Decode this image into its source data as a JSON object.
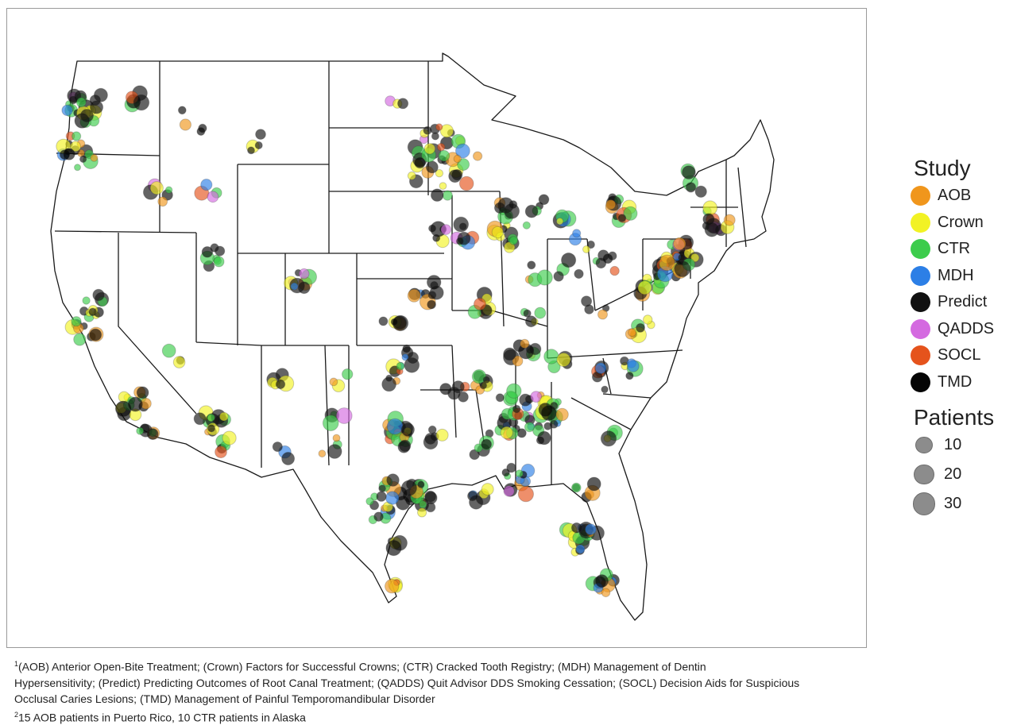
{
  "legend": {
    "study_title": "Study",
    "studies": [
      {
        "name": "AOB",
        "color": "#f0961c"
      },
      {
        "name": "Crown",
        "color": "#f2f224"
      },
      {
        "name": "CTR",
        "color": "#3ccc4c"
      },
      {
        "name": "MDH",
        "color": "#2c7fe6"
      },
      {
        "name": "Predict",
        "color": "#111111"
      },
      {
        "name": "QADDS",
        "color": "#d46ae0"
      },
      {
        "name": "SOCL",
        "color": "#e5531c"
      },
      {
        "name": "TMD",
        "color": "#050505"
      }
    ],
    "patients_title": "Patients",
    "sizes": [
      {
        "label": "10",
        "value": 10
      },
      {
        "label": "20",
        "value": 20
      },
      {
        "label": "30",
        "value": 30
      }
    ]
  },
  "footnotes": {
    "note1_marker": "1",
    "note1_line1": "(AOB) Anterior Open-Bite Treatment; (Crown) Factors for Successful Crowns; (CTR) Cracked Tooth Registry; (MDH) Management of Dentin",
    "note1_line2": "Hypersensitivity; (Predict) Predicting Outcomes of Root Canal Treatment; (QADDS) Quit Advisor DDS Smoking Cessation; (SOCL) Decision Aids for Suspicious",
    "note1_line3": "Occlusal Caries Lesions; (TMD) Management of Painful Temporomandibular Disorder",
    "note2_marker": "2",
    "note2_text": "15 AOB patients in Puerto Rico, 10 CTR patients in Alaska"
  },
  "map": {
    "border_color": "#1a1a1a",
    "clusters": [
      {
        "place": "Seattle",
        "lon": -122.3,
        "lat": 47.6,
        "count": 22,
        "spread": 0.9
      },
      {
        "place": "Portland",
        "lon": -122.7,
        "lat": 45.5,
        "count": 18,
        "spread": 0.8
      },
      {
        "place": "Spokane",
        "lon": -117.4,
        "lat": 47.7,
        "count": 6,
        "spread": 0.6
      },
      {
        "place": "Boise",
        "lon": -116.2,
        "lat": 43.6,
        "count": 6,
        "spread": 0.6
      },
      {
        "place": "Bay Area",
        "lon": -122.2,
        "lat": 37.7,
        "count": 14,
        "spread": 0.8
      },
      {
        "place": "Sacramento",
        "lon": -121.5,
        "lat": 38.6,
        "count": 6,
        "spread": 0.5
      },
      {
        "place": "Los Angeles",
        "lon": -118.2,
        "lat": 34.1,
        "count": 14,
        "spread": 0.7
      },
      {
        "place": "San Diego",
        "lon": -117.1,
        "lat": 32.8,
        "count": 6,
        "spread": 0.4
      },
      {
        "place": "Salt Lake City",
        "lon": -111.9,
        "lat": 40.7,
        "count": 8,
        "spread": 0.5
      },
      {
        "place": "Denver",
        "lon": -104.9,
        "lat": 39.7,
        "count": 10,
        "spread": 0.5
      },
      {
        "place": "Phoenix",
        "lon": -112.0,
        "lat": 33.4,
        "count": 14,
        "spread": 0.6
      },
      {
        "place": "Tucson",
        "lon": -110.9,
        "lat": 32.2,
        "count": 5,
        "spread": 0.4
      },
      {
        "place": "Albuquerque",
        "lon": -106.6,
        "lat": 35.1,
        "count": 6,
        "spread": 0.4
      },
      {
        "place": "Billings",
        "lon": -108.5,
        "lat": 45.8,
        "count": 4,
        "spread": 0.5
      },
      {
        "place": "Minneapolis",
        "lon": -93.3,
        "lat": 45.0,
        "count": 40,
        "spread": 1.6
      },
      {
        "place": "Chicago",
        "lon": -87.7,
        "lat": 41.9,
        "count": 16,
        "spread": 0.8
      },
      {
        "place": "Des Moines",
        "lon": -93.6,
        "lat": 41.6,
        "count": 6,
        "spread": 0.5
      },
      {
        "place": "Kansas City",
        "lon": -94.6,
        "lat": 39.1,
        "count": 10,
        "spread": 0.6
      },
      {
        "place": "Wichita",
        "lon": -97.3,
        "lat": 37.7,
        "count": 6,
        "spread": 0.5
      },
      {
        "place": "St. Louis",
        "lon": -90.2,
        "lat": 38.6,
        "count": 8,
        "spread": 0.5
      },
      {
        "place": "Oklahoma City",
        "lon": -97.5,
        "lat": 35.5,
        "count": 8,
        "spread": 0.6
      },
      {
        "place": "Dallas",
        "lon": -96.8,
        "lat": 32.8,
        "count": 18,
        "spread": 0.7
      },
      {
        "place": "Houston",
        "lon": -95.4,
        "lat": 29.8,
        "count": 20,
        "spread": 0.8
      },
      {
        "place": "San Antonio",
        "lon": -98.5,
        "lat": 29.4,
        "count": 10,
        "spread": 0.6
      },
      {
        "place": "Corpus Christi",
        "lon": -97.4,
        "lat": 27.8,
        "count": 5,
        "spread": 0.4
      },
      {
        "place": "Brownsville",
        "lon": -97.5,
        "lat": 26.0,
        "count": 4,
        "spread": 0.3
      },
      {
        "place": "Austin",
        "lon": -97.7,
        "lat": 30.3,
        "count": 8,
        "spread": 0.5
      },
      {
        "place": "Birmingham",
        "lon": -86.8,
        "lat": 33.5,
        "count": 40,
        "spread": 1.4
      },
      {
        "place": "Memphis",
        "lon": -90.0,
        "lat": 35.1,
        "count": 8,
        "spread": 0.6
      },
      {
        "place": "Nashville",
        "lon": -86.8,
        "lat": 36.2,
        "count": 10,
        "spread": 0.7
      },
      {
        "place": "Atlanta",
        "lon": -84.4,
        "lat": 33.7,
        "count": 10,
        "spread": 0.6
      },
      {
        "place": "New Orleans",
        "lon": -90.1,
        "lat": 30.0,
        "count": 6,
        "spread": 0.5
      },
      {
        "place": "Mobile",
        "lon": -87.2,
        "lat": 30.6,
        "count": 12,
        "spread": 0.7
      },
      {
        "place": "Jacksonville",
        "lon": -81.7,
        "lat": 30.3,
        "count": 6,
        "spread": 0.5
      },
      {
        "place": "Tampa",
        "lon": -82.5,
        "lat": 28.0,
        "count": 12,
        "spread": 0.6
      },
      {
        "place": "Miami",
        "lon": -80.3,
        "lat": 26.0,
        "count": 10,
        "spread": 0.5
      },
      {
        "place": "Orlando",
        "lon": -81.4,
        "lat": 28.5,
        "count": 6,
        "spread": 0.4
      },
      {
        "place": "Louisville",
        "lon": -85.8,
        "lat": 38.2,
        "count": 5,
        "spread": 0.5
      },
      {
        "place": "Charlotte",
        "lon": -80.8,
        "lat": 35.2,
        "count": 6,
        "spread": 0.6
      },
      {
        "place": "Charleston",
        "lon": -80.0,
        "lat": 32.8,
        "count": 4,
        "spread": 0.4
      },
      {
        "place": "Raleigh",
        "lon": -78.6,
        "lat": 35.8,
        "count": 6,
        "spread": 0.6
      },
      {
        "place": "Richmond",
        "lon": -77.4,
        "lat": 37.5,
        "count": 8,
        "spread": 0.6
      },
      {
        "place": "Baltimore",
        "lon": -76.6,
        "lat": 39.3,
        "count": 10,
        "spread": 0.5
      },
      {
        "place": "Philadelphia",
        "lon": -75.2,
        "lat": 40.0,
        "count": 14,
        "spread": 0.6
      },
      {
        "place": "New York",
        "lon": -74.0,
        "lat": 40.7,
        "count": 22,
        "spread": 0.7
      },
      {
        "place": "Boston",
        "lon": -71.1,
        "lat": 42.4,
        "count": 12,
        "spread": 0.6
      },
      {
        "place": "Buffalo",
        "lon": -78.9,
        "lat": 42.9,
        "count": 12,
        "spread": 0.6
      },
      {
        "place": "Pittsburgh",
        "lon": -80.0,
        "lat": 40.4,
        "count": 6,
        "spread": 0.5
      },
      {
        "place": "Cleveland",
        "lon": -81.7,
        "lat": 41.5,
        "count": 4,
        "spread": 0.5
      },
      {
        "place": "Detroit",
        "lon": -83.1,
        "lat": 42.3,
        "count": 5,
        "spread": 0.5
      },
      {
        "place": "Vermont",
        "lon": -73.2,
        "lat": 44.0,
        "count": 5,
        "spread": 0.6
      },
      {
        "place": "Grand Rapids",
        "lon": -85.7,
        "lat": 43.0,
        "count": 4,
        "spread": 0.5
      },
      {
        "place": "Milwaukee",
        "lon": -87.9,
        "lat": 43.0,
        "count": 6,
        "spread": 0.5
      },
      {
        "place": "Fargo",
        "lon": -97.0,
        "lat": 47.5,
        "count": 3,
        "spread": 0.4
      },
      {
        "place": "Jackson",
        "lon": -90.2,
        "lat": 32.3,
        "count": 6,
        "spread": 0.6
      },
      {
        "place": "Shreveport",
        "lon": -93.7,
        "lat": 32.5,
        "count": 5,
        "spread": 0.5
      },
      {
        "place": "Little Rock",
        "lon": -92.3,
        "lat": 34.7,
        "count": 5,
        "spread": 0.5
      },
      {
        "place": "Tulsa",
        "lon": -95.9,
        "lat": 36.2,
        "count": 5,
        "spread": 0.5
      },
      {
        "place": "El Paso",
        "lon": -106.4,
        "lat": 31.8,
        "count": 3,
        "spread": 0.4
      },
      {
        "place": "Las Vegas",
        "lon": -115.1,
        "lat": 36.2,
        "count": 3,
        "spread": 0.4
      },
      {
        "place": "Montana NW",
        "lon": -113.5,
        "lat": 47.0,
        "count": 4,
        "spread": 0.8
      },
      {
        "place": "Idaho Falls",
        "lon": -112.0,
        "lat": 43.5,
        "count": 4,
        "spread": 0.5
      },
      {
        "place": "Midland",
        "lon": -102.1,
        "lat": 32.0,
        "count": 4,
        "spread": 0.6
      },
      {
        "place": "Lubbock",
        "lon": -101.8,
        "lat": 33.6,
        "count": 4,
        "spread": 0.5
      },
      {
        "place": "Amarillo",
        "lon": -101.8,
        "lat": 35.2,
        "count": 3,
        "spread": 0.5
      },
      {
        "place": "Iowa City",
        "lon": -91.5,
        "lat": 41.7,
        "count": 8,
        "spread": 0.5
      },
      {
        "place": "Indiana",
        "lon": -86.2,
        "lat": 39.8,
        "count": 4,
        "spread": 0.7
      },
      {
        "place": "Columbus",
        "lon": -83.0,
        "lat": 40.0,
        "count": 4,
        "spread": 0.6
      },
      {
        "place": "Knoxville",
        "lon": -83.9,
        "lat": 35.9,
        "count": 5,
        "spread": 0.5
      },
      {
        "place": "West Virginia",
        "lon": -80.6,
        "lat": 38.6,
        "count": 4,
        "spread": 0.6
      }
    ]
  }
}
